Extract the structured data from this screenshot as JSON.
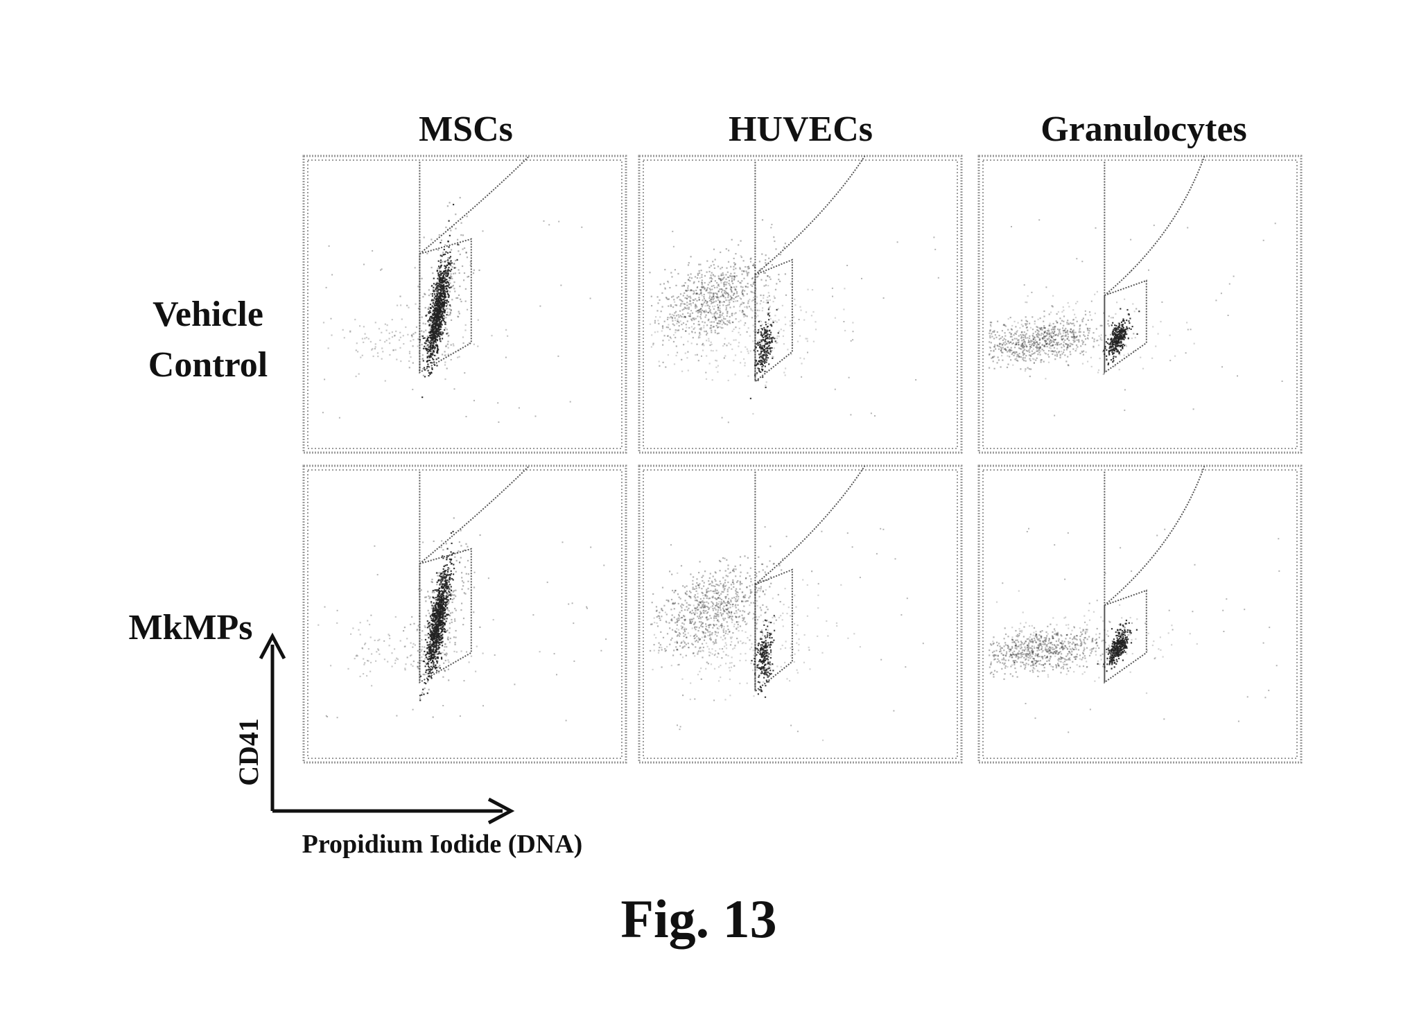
{
  "figure": {
    "caption": "Fig. 13",
    "axis_y_label": "CD41",
    "axis_x_label": "Propidium Iodide (DNA)"
  },
  "colors": {
    "ink": "#111111",
    "frame": "#9a9a9a",
    "gate": "#555555",
    "dots": "#222222"
  },
  "chart_data": {
    "type": "scatter",
    "title": "",
    "xlabel": "Propidium Iodide (DNA)",
    "ylabel": "CD41",
    "grid": false,
    "columns": [
      "MSCs",
      "HUVECs",
      "Granulocytes"
    ],
    "rows": [
      "Vehicle\nControl",
      "MkMPs"
    ],
    "row_lines": [
      [
        "Vehicle",
        "Control"
      ],
      [
        "MkMPs"
      ]
    ],
    "panels": [
      {
        "row": "Vehicle Control",
        "column": "MSCs",
        "density": "tight dense cluster inside gate"
      },
      {
        "row": "Vehicle Control",
        "column": "HUVECs",
        "density": "diffuse diagonal cloud left of gate; small dense spot in gate"
      },
      {
        "row": "Vehicle Control",
        "column": "Granulocytes",
        "density": "horizontal band at low CD41; dense spot in gate"
      },
      {
        "row": "MkMPs",
        "column": "MSCs",
        "density": "tight dense cluster inside gate"
      },
      {
        "row": "MkMPs",
        "column": "HUVECs",
        "density": "diffuse diagonal cloud left of gate; small dense spot in gate"
      },
      {
        "row": "MkMPs",
        "column": "Granulocytes",
        "density": "horizontal band at low CD41; dense spot in gate"
      }
    ]
  }
}
